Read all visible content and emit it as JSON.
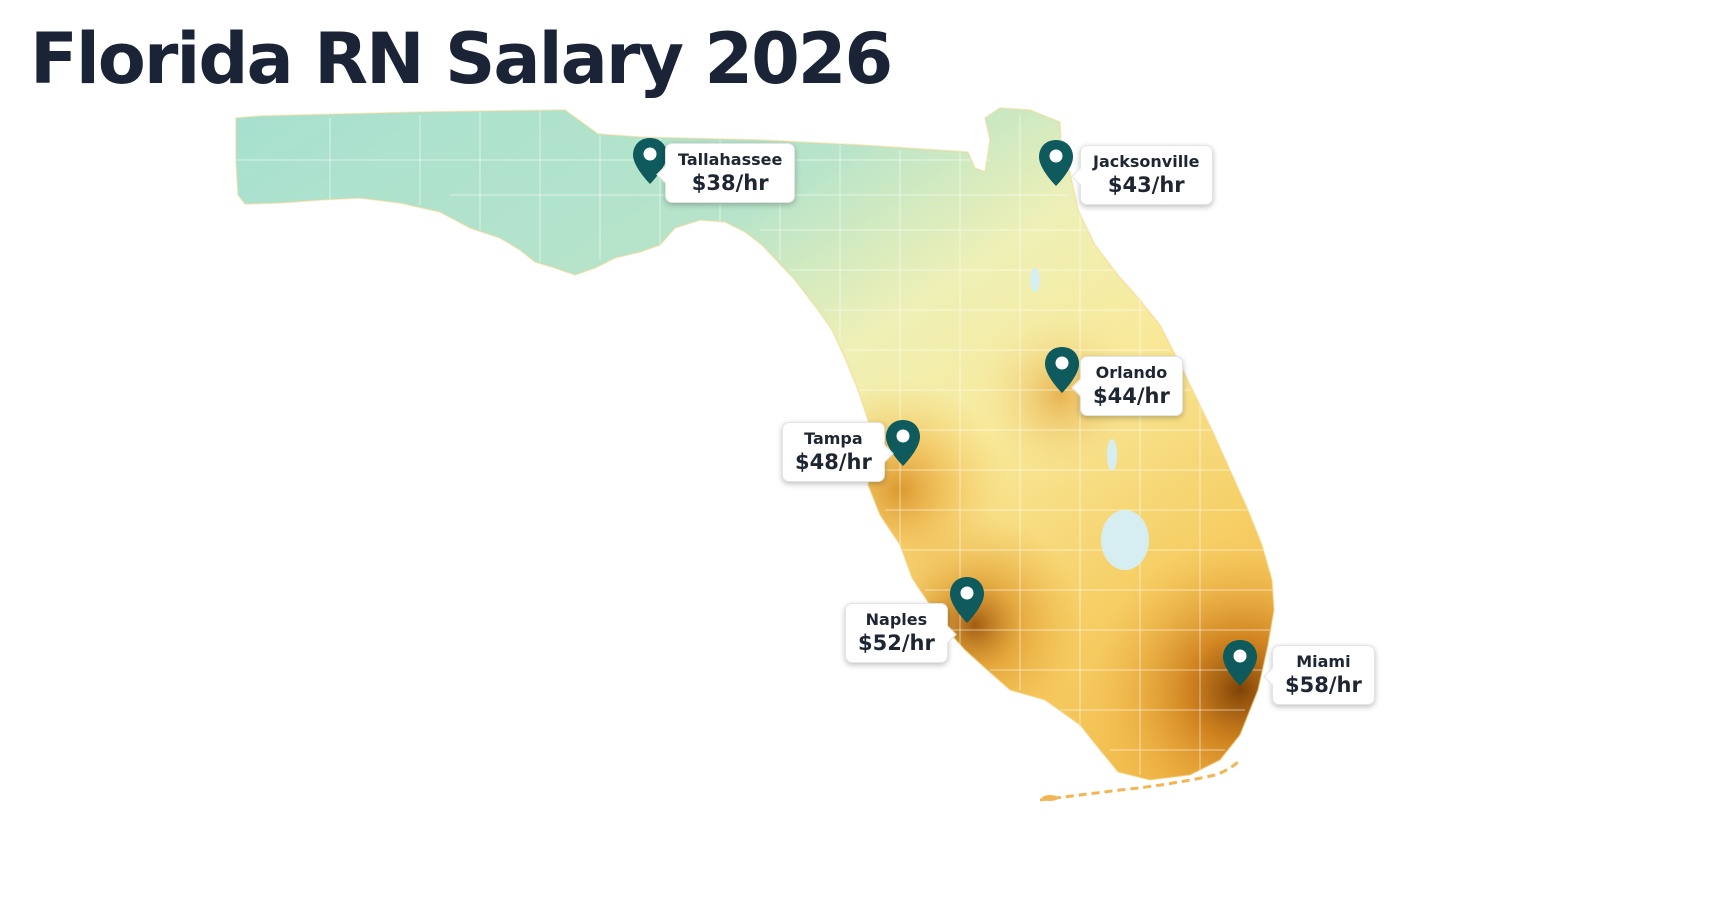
{
  "title": "Florida RN Salary 2026",
  "colors": {
    "low": "#a8e0d0",
    "mid": "#f7ec9d",
    "high": "#f2b53a",
    "peak": "#8a4a06",
    "pin": "#0e5a5c"
  },
  "markers": [
    {
      "id": "tallahassee",
      "city": "Tallahassee",
      "rate": "$38/hr"
    },
    {
      "id": "jacksonville",
      "city": "Jacksonville",
      "rate": "$43/hr"
    },
    {
      "id": "orlando",
      "city": "Orlando",
      "rate": "$44/hr"
    },
    {
      "id": "tampa",
      "city": "Tampa",
      "rate": "$48/hr"
    },
    {
      "id": "naples",
      "city": "Naples",
      "rate": "$52/hr"
    },
    {
      "id": "miami",
      "city": "Miami",
      "rate": "$58/hr"
    }
  ]
}
